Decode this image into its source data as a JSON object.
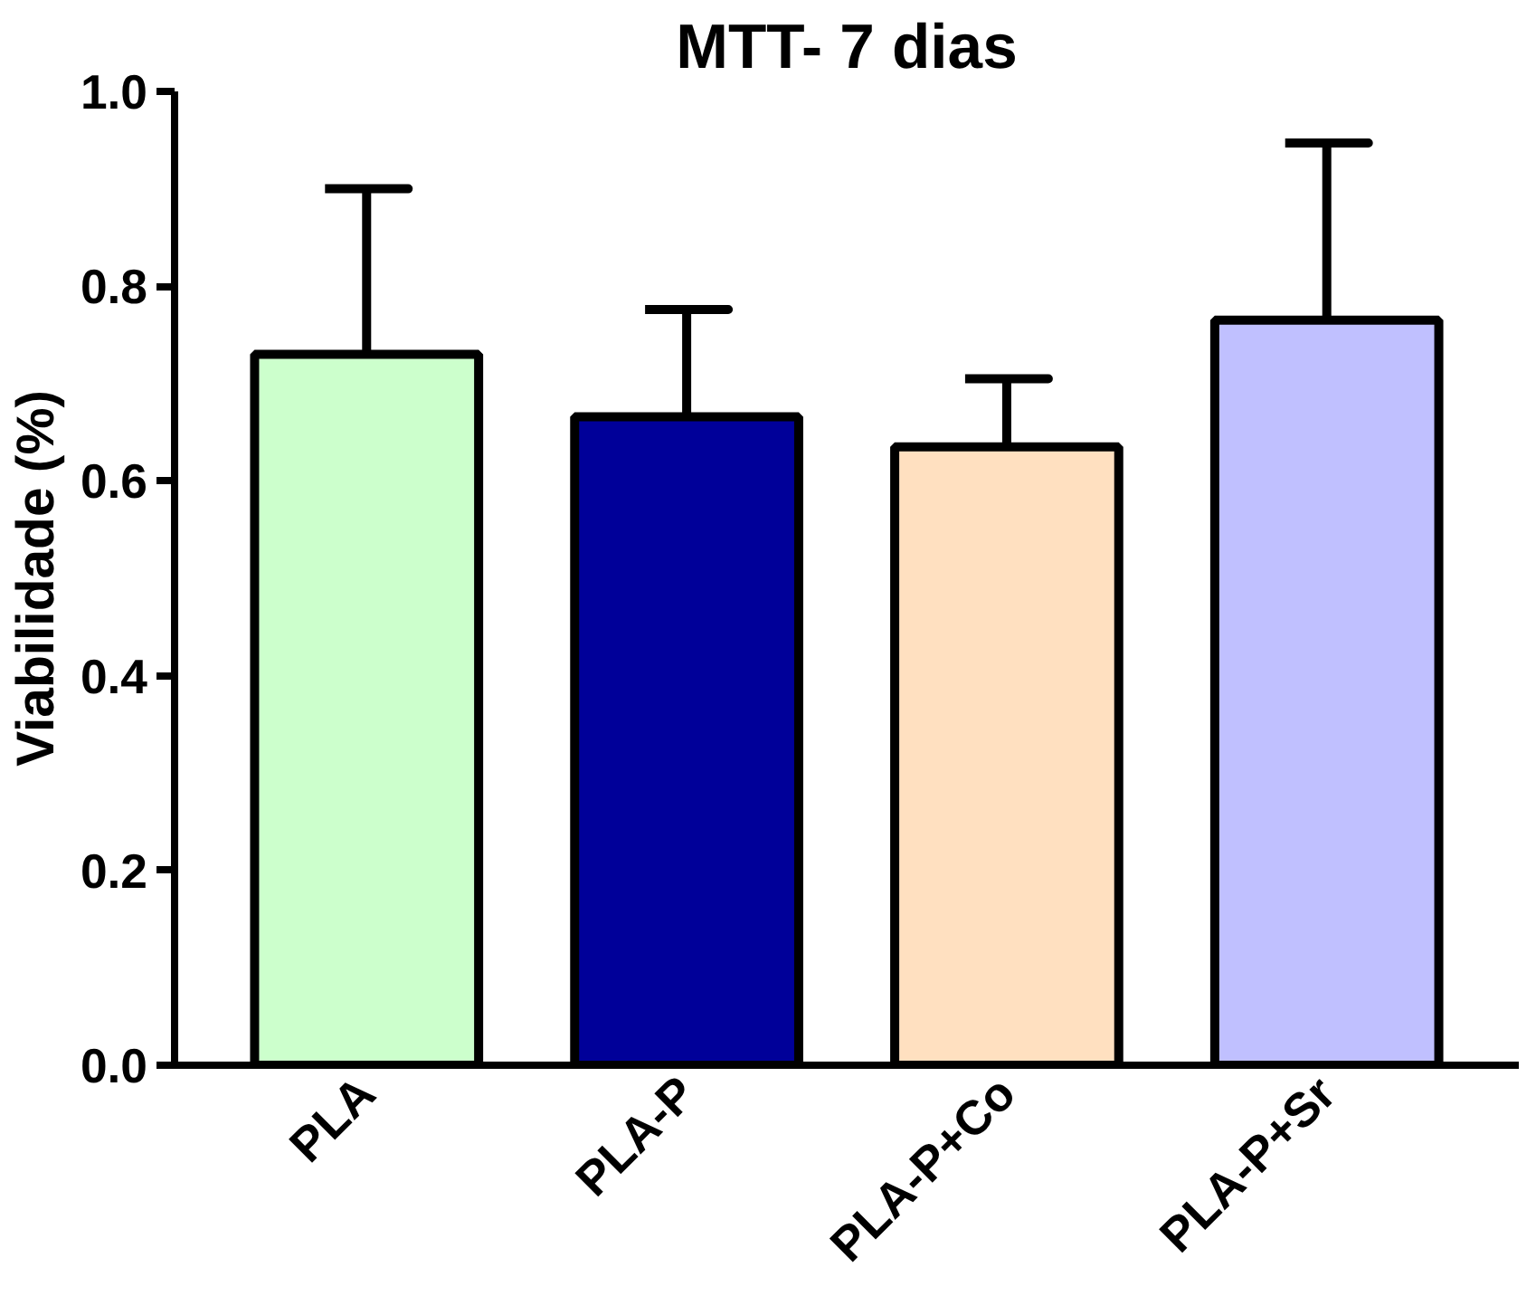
{
  "chart_data": {
    "type": "bar",
    "title": "MTT- 7 dias",
    "ylabel": "Viabilidade (%)",
    "categories": [
      "PLA",
      "PLA-P",
      "PLA-P+Co",
      "PLA-P+Sr"
    ],
    "values": [
      0.73,
      0.666,
      0.635,
      0.765
    ],
    "colors": [
      "#ccffcc",
      "#000099",
      "#ffe0c0",
      "#c0c0ff"
    ],
    "errors": [
      [
        0.73,
        0.9
      ],
      [
        0.666,
        0.776
      ],
      [
        0.635,
        0.705
      ],
      [
        0.765,
        0.947
      ]
    ],
    "ylim": [
      0,
      1.0
    ],
    "yticks": [
      {
        "value": 0,
        "label": "0.0"
      },
      {
        "value": 0.2,
        "label": "0.2"
      },
      {
        "value": 0.4,
        "label": "0.4"
      },
      {
        "value": 0.6,
        "label": "0.6"
      },
      {
        "value": 0.8,
        "label": "0.8"
      },
      {
        "value": 1.0,
        "label": "1.0"
      }
    ],
    "grid": false
  }
}
